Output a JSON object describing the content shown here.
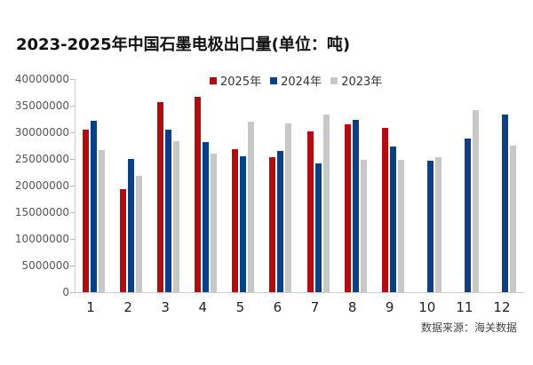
{
  "header": {
    "title": "2023-2025年中国石墨电极出口量(单位：吨)"
  },
  "colors": {
    "s2025": "#b00d10",
    "s2024": "#0d3f87",
    "s2023": "#c8c8c8"
  },
  "legend": [
    {
      "label": "2025年",
      "color": "#b00d10"
    },
    {
      "label": "2024年",
      "color": "#0d3f87"
    },
    {
      "label": "2023年",
      "color": "#c8c8c8"
    }
  ],
  "yaxis": {
    "ticks": [
      "40000000",
      "35000000",
      "30000000",
      "25000000",
      "20000000",
      "15000000",
      "10000000",
      "5000000",
      "0"
    ]
  },
  "xaxis": {
    "ticks": [
      "1",
      "2",
      "3",
      "4",
      "5",
      "6",
      "7",
      "8",
      "9",
      "10",
      "11",
      "12"
    ]
  },
  "footer": {
    "source": "数据来源：海关数据"
  },
  "chart_data": {
    "type": "bar",
    "title": "2023-2025年中国石墨电极出口量(单位：吨)",
    "xlabel": "",
    "ylabel": "",
    "categories": [
      "1",
      "2",
      "3",
      "4",
      "5",
      "6",
      "7",
      "8",
      "9",
      "10",
      "11",
      "12"
    ],
    "ylim": [
      0,
      40000000
    ],
    "grid": false,
    "legend_position": "top",
    "series": [
      {
        "name": "2025年",
        "color": "#b00d10",
        "values": [
          30500000,
          19400000,
          35700000,
          36700000,
          26800000,
          25300000,
          30200000,
          31500000,
          30800000,
          null,
          null,
          null
        ]
      },
      {
        "name": "2024年",
        "color": "#0d3f87",
        "values": [
          32100000,
          25000000,
          30500000,
          28200000,
          25500000,
          26500000,
          24200000,
          32300000,
          27300000,
          24700000,
          28800000,
          33300000
        ]
      },
      {
        "name": "2023年",
        "color": "#c8c8c8",
        "values": [
          26700000,
          21800000,
          28400000,
          26000000,
          32000000,
          31700000,
          33300000,
          24800000,
          24800000,
          25300000,
          34200000,
          27500000
        ]
      }
    ],
    "annotations": [
      "数据来源：海关数据"
    ]
  }
}
